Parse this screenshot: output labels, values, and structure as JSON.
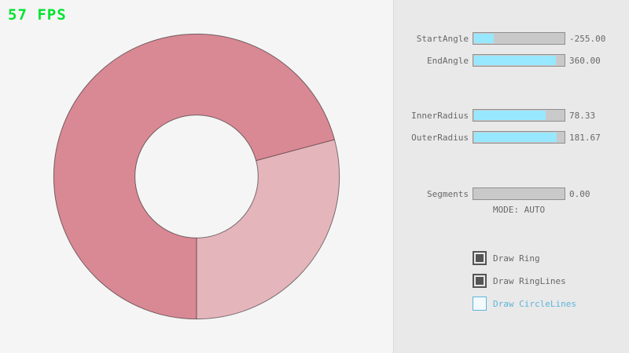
{
  "fps": "57 FPS",
  "ring": {
    "light_color": "#e5b5bc",
    "dark_color": "#d98994"
  },
  "panel": {
    "sliders": [
      {
        "label": "StartAngle",
        "value": "-255.00",
        "fill_pct": 21.7
      },
      {
        "label": "EndAngle",
        "value": "360.00",
        "fill_pct": 90.0
      },
      {
        "label": "InnerRadius",
        "value": "78.33",
        "fill_pct": 78.3
      },
      {
        "label": "OuterRadius",
        "value": "181.67",
        "fill_pct": 90.8
      },
      {
        "label": "Segments",
        "value": "0.00",
        "fill_pct": 0
      }
    ],
    "mode_label": "MODE: AUTO",
    "checkboxes": [
      {
        "label": "Draw Ring",
        "checked": true
      },
      {
        "label": "Draw RingLines",
        "checked": true
      },
      {
        "label": "Draw CircleLines",
        "checked": false
      }
    ]
  },
  "colors": {
    "fps_green": "#00e430",
    "slider_fill": "#97e8ff",
    "slider_track": "#c9c9c9",
    "accent_blue": "#5fb4dc",
    "outline": "#000000",
    "text_gray": "#686868"
  }
}
